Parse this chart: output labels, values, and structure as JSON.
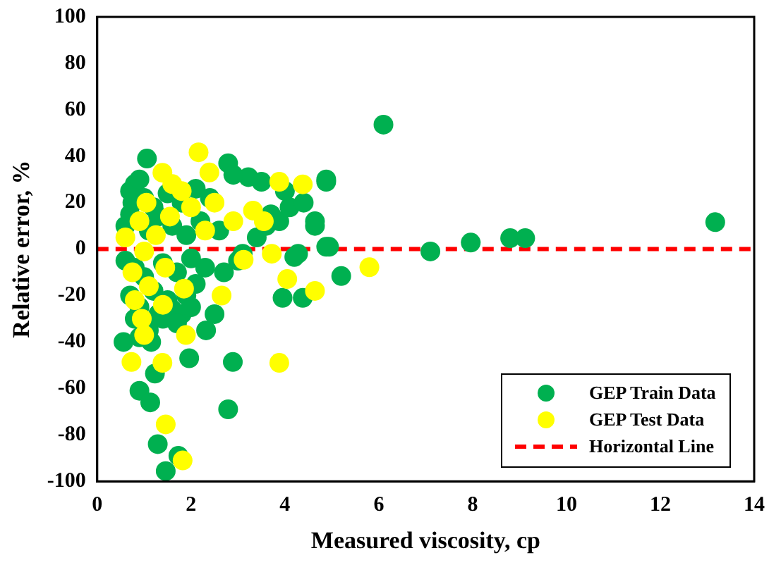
{
  "chart_data": {
    "type": "scatter",
    "xlabel": "Measured viscosity, cp",
    "ylabel": "Relative error, %",
    "xlim": [
      0,
      14
    ],
    "xticks": [
      0,
      2,
      4,
      6,
      8,
      10,
      12,
      14
    ],
    "ylim": [
      -100,
      100
    ],
    "yticks": [
      -100,
      -80,
      -60,
      -40,
      -20,
      0,
      20,
      40,
      60,
      80,
      100
    ],
    "grid": false,
    "legend": "bottom right",
    "marker": "circle",
    "series": [
      {
        "name": "GEP Train Data",
        "color": "#00b050",
        "x": [
          1.06,
          2.79,
          4.88,
          3.22,
          2.9,
          3.5,
          5.2,
          3.95,
          4.38,
          2.89,
          2.79,
          0.9,
          1.13,
          1.29,
          1.46,
          1.73,
          0.56,
          1.23,
          1.96,
          2.32,
          3.88,
          4.64,
          4.94,
          4.28,
          4.88,
          4.88,
          7.1,
          7.96,
          8.8,
          9.12,
          13.17,
          6.1,
          4.2,
          4.64,
          0.7,
          0.8,
          0.9,
          1.0,
          1.2,
          1.5,
          1.8,
          2.1,
          2.4,
          0.6,
          0.7,
          0.75,
          1.1,
          1.3,
          1.6,
          1.9,
          2.2,
          2.6,
          0.6,
          0.8,
          1.0,
          1.4,
          1.7,
          2.0,
          2.3,
          0.7,
          0.9,
          1.2,
          1.5,
          1.8,
          2.1,
          0.8,
          1.15,
          1.3,
          1.6,
          1.9,
          0.9,
          1.1,
          1.4,
          1.7,
          2.0,
          2.5,
          3.0,
          3.4,
          3.7,
          4.1,
          4.4,
          2.7,
          3.1,
          3.6,
          4.0
        ],
        "values": [
          39,
          37,
          30,
          31,
          32,
          29,
          -11.6,
          -21,
          -21,
          -48.6,
          -69,
          -61,
          -66,
          -84,
          -95.6,
          -89,
          -40,
          -53.6,
          -47,
          -35,
          12,
          12,
          1,
          -2,
          29,
          1,
          -1,
          2.8,
          4.7,
          4.7,
          11.6,
          53.6,
          -3.4,
          10,
          25,
          28,
          30,
          22,
          18,
          24,
          20,
          26,
          22,
          10,
          15,
          20,
          8,
          14,
          10,
          6,
          12,
          8,
          -5,
          -8,
          -12,
          -6,
          -10,
          -4,
          -8,
          -20,
          -25,
          -18,
          -22,
          -28,
          -15,
          -30,
          -40,
          -28,
          -26,
          -20,
          -38,
          -35,
          -30,
          -32,
          -25,
          -28,
          -5,
          5,
          15,
          18,
          20,
          -10,
          -2,
          10,
          25
        ]
      },
      {
        "name": "GEP Test Data",
        "color": "#ffff00",
        "x": [
          2.16,
          1.39,
          2.39,
          3.88,
          4.38,
          3.32,
          3.55,
          3.72,
          4.05,
          4.64,
          2.65,
          3.88,
          0.73,
          1.39,
          1.89,
          1.0,
          1.46,
          1.82,
          3.12,
          5.8,
          1.8,
          1.6,
          2.5,
          2.9,
          0.6,
          0.75,
          0.9,
          1.0,
          1.25,
          1.1,
          1.45,
          1.55,
          0.8,
          1.4,
          0.95,
          1.85,
          2.0,
          2.3,
          1.05
        ],
        "values": [
          41.7,
          32.9,
          33,
          29,
          27.9,
          16.6,
          12,
          -2,
          -12.9,
          -18,
          -20,
          -49,
          -48.6,
          -49,
          -37,
          -37,
          -75.5,
          -91,
          -4.6,
          -7.8,
          25,
          28,
          20,
          12,
          5,
          -10,
          12,
          -1,
          6,
          -16,
          -8,
          14,
          -22,
          -24,
          -30,
          -17,
          18,
          8,
          20
        ]
      },
      {
        "name": "Horizontal Line",
        "type": "line",
        "color": "#ff0000",
        "line_style": "dashed",
        "marker": "none",
        "x": [
          0,
          14
        ],
        "values": [
          0,
          0
        ]
      }
    ]
  }
}
